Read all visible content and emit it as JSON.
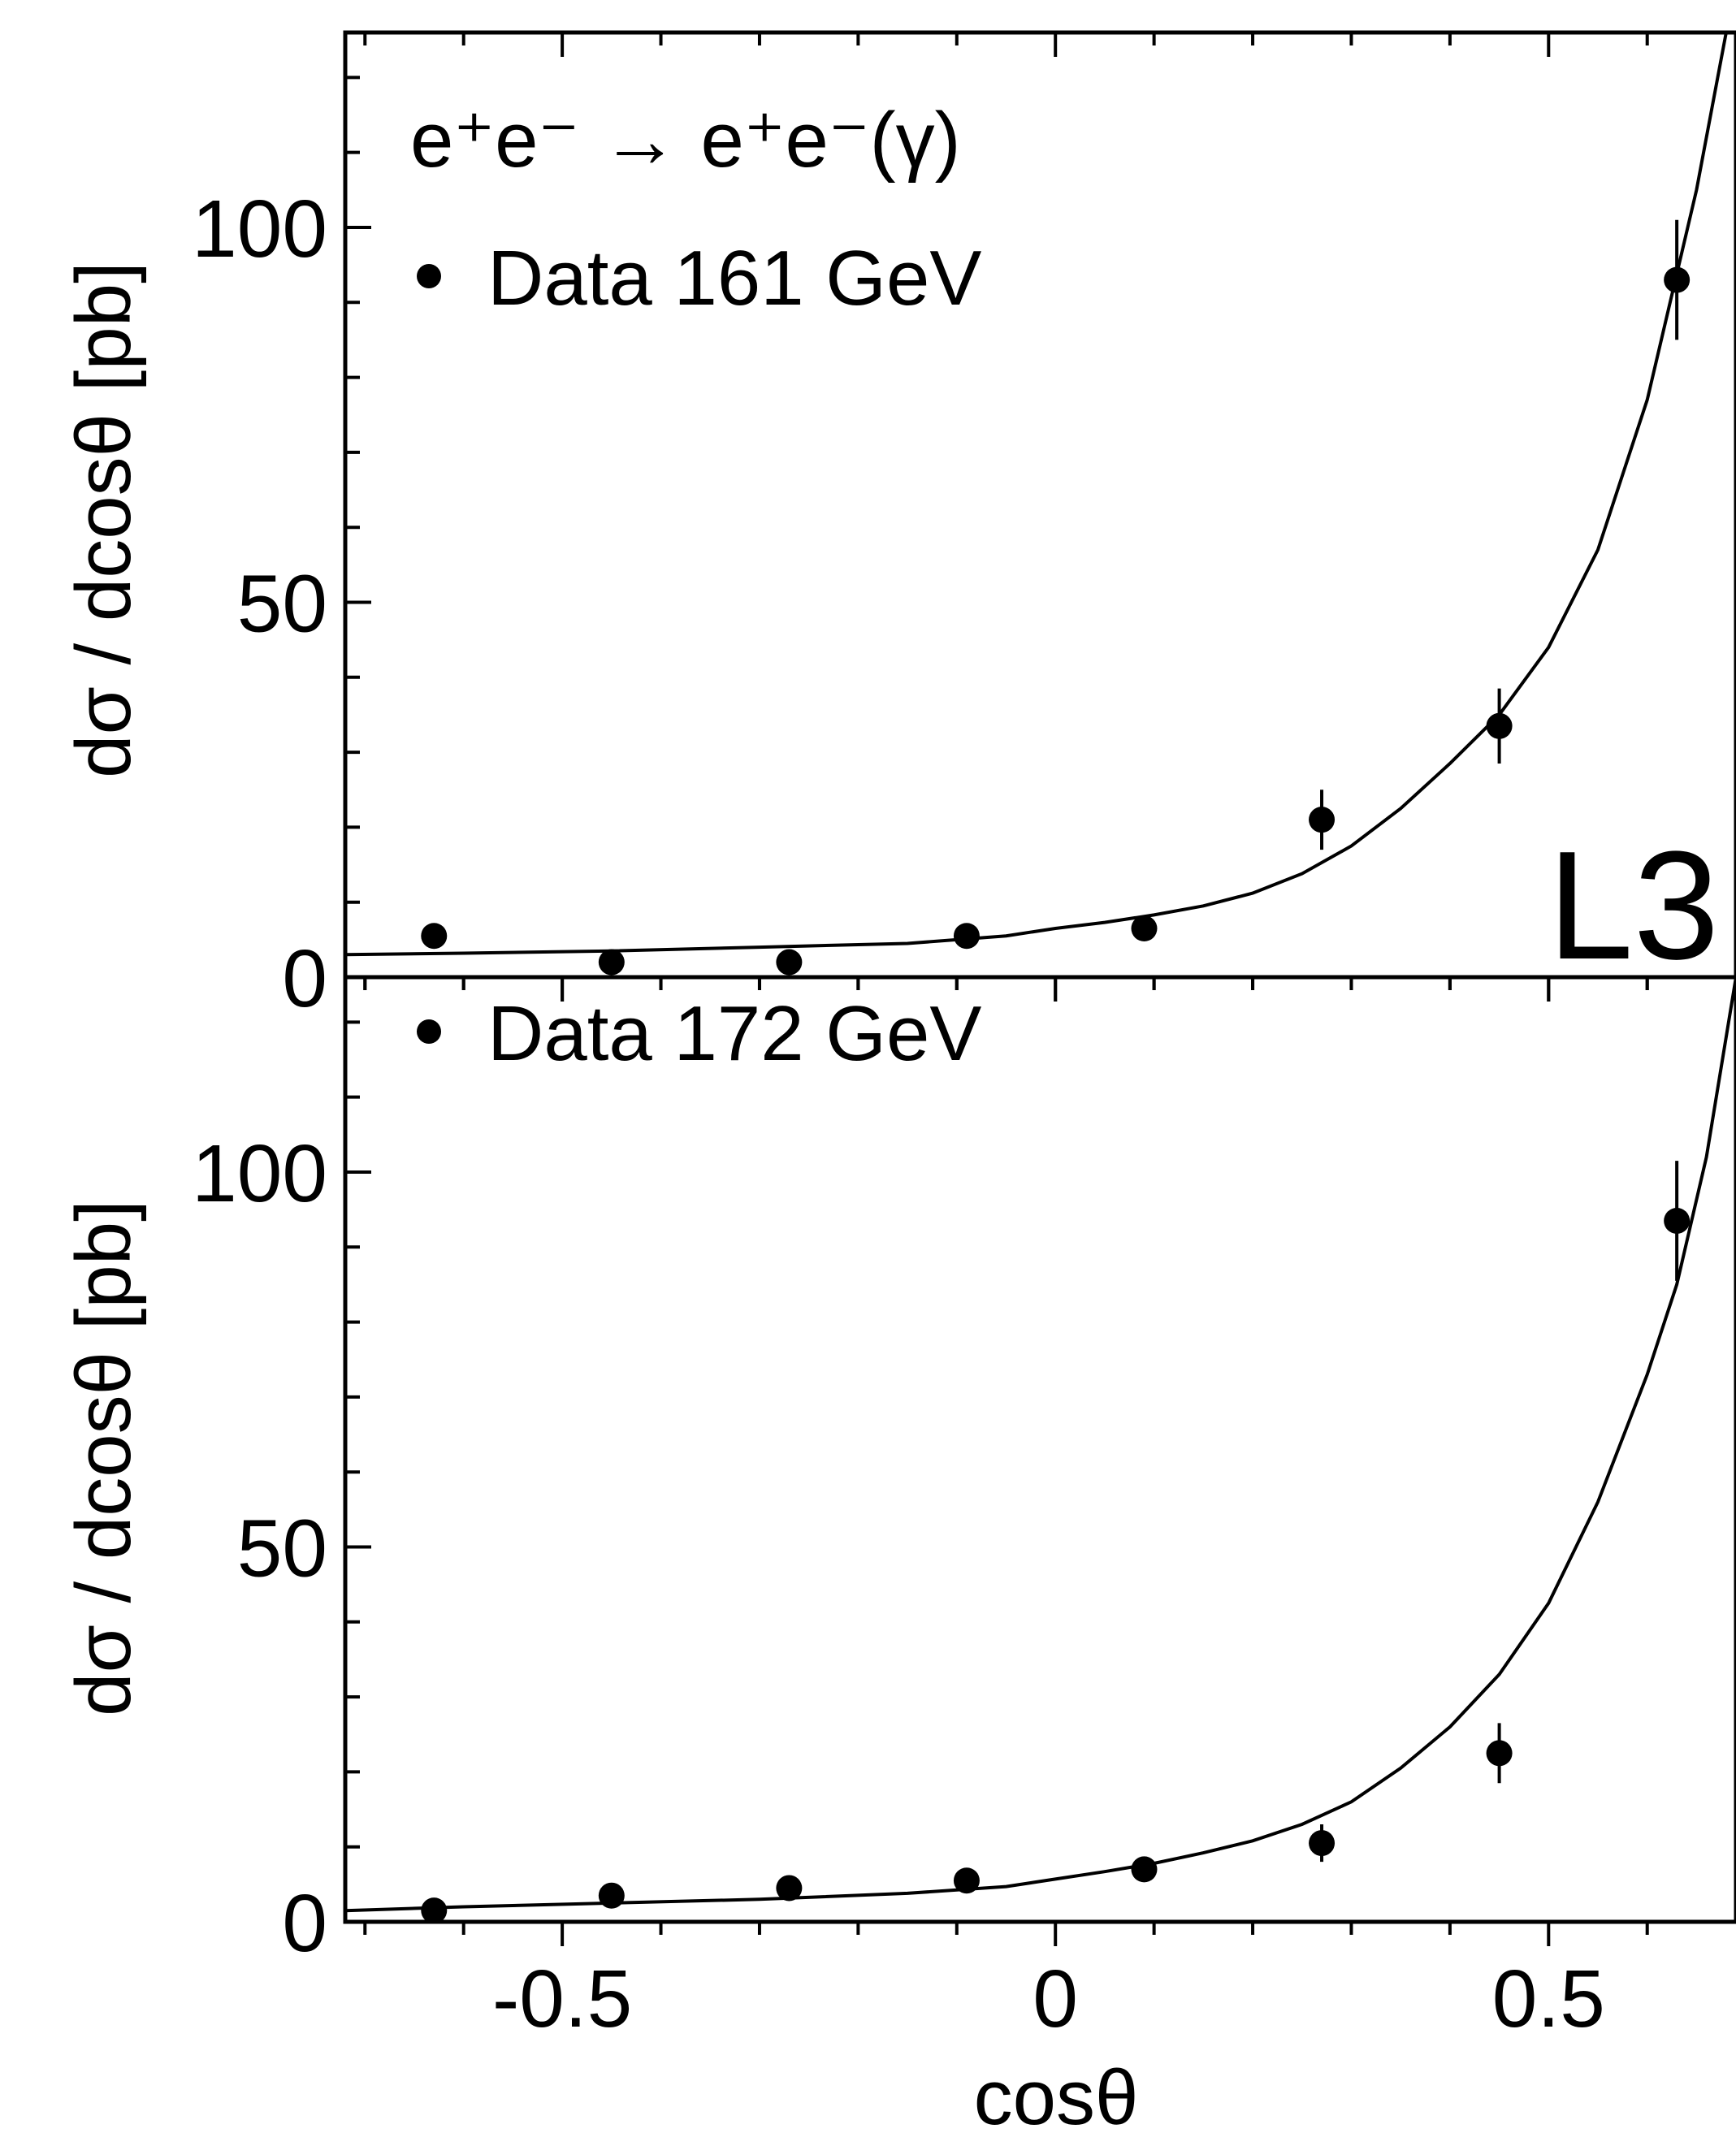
{
  "brand_label": "L3",
  "process_label": "e⁺e⁻ → e⁺e⁻(γ)",
  "x_axis": {
    "label": "cosθ",
    "ticks": [
      -0.5,
      0,
      0.5
    ],
    "tick_labels": [
      "-0.5",
      "0",
      "0.5"
    ]
  },
  "chart_data": [
    {
      "type": "scatter",
      "legend": "Data 161 GeV",
      "ylabel": "dσ / dcosθ [pb]",
      "xlim": [
        -0.72,
        0.69
      ],
      "ylim": [
        0,
        126
      ],
      "y_ticks": [
        0,
        50,
        100
      ],
      "y_tick_labels": [
        "0",
        "50",
        "100"
      ],
      "points": [
        {
          "x": -0.63,
          "y": 5.5,
          "err": 1.5
        },
        {
          "x": -0.45,
          "y": 2.0,
          "err": 1.0
        },
        {
          "x": -0.27,
          "y": 2.0,
          "err": 1.0
        },
        {
          "x": -0.09,
          "y": 5.5,
          "err": 1.2
        },
        {
          "x": 0.09,
          "y": 6.5,
          "err": 1.5
        },
        {
          "x": 0.27,
          "y": 21.0,
          "err": 4.0
        },
        {
          "x": 0.45,
          "y": 33.5,
          "err": 5.0
        },
        {
          "x": 0.63,
          "y": 93.0,
          "err": 8.0
        }
      ],
      "curve": {
        "x": [
          -0.72,
          -0.6,
          -0.45,
          -0.3,
          -0.15,
          -0.05,
          0.0,
          0.05,
          0.1,
          0.15,
          0.2,
          0.25,
          0.3,
          0.35,
          0.4,
          0.45,
          0.5,
          0.55,
          0.6,
          0.65,
          0.68
        ],
        "y": [
          3.0,
          3.2,
          3.5,
          4.0,
          4.5,
          5.5,
          6.5,
          7.3,
          8.3,
          9.5,
          11.2,
          13.8,
          17.5,
          22.5,
          28.5,
          35.0,
          44.0,
          57.0,
          77.0,
          105.0,
          126.0
        ]
      }
    },
    {
      "type": "scatter",
      "legend": "Data 172 GeV",
      "ylabel": "dσ / dcosθ [pb]",
      "xlim": [
        -0.72,
        0.69
      ],
      "ylim": [
        0,
        126
      ],
      "y_ticks": [
        0,
        50,
        100
      ],
      "y_tick_labels": [
        "0",
        "50",
        "100"
      ],
      "points": [
        {
          "x": -0.63,
          "y": 1.5,
          "err": 1.0
        },
        {
          "x": -0.45,
          "y": 3.5,
          "err": 1.0
        },
        {
          "x": -0.27,
          "y": 4.5,
          "err": 1.0
        },
        {
          "x": -0.09,
          "y": 5.5,
          "err": 1.2
        },
        {
          "x": 0.09,
          "y": 7.0,
          "err": 1.5
        },
        {
          "x": 0.27,
          "y": 10.5,
          "err": 2.5
        },
        {
          "x": 0.45,
          "y": 22.5,
          "err": 4.0
        },
        {
          "x": 0.63,
          "y": 93.5,
          "err": 8.0
        }
      ],
      "curve": {
        "x": [
          -0.72,
          -0.6,
          -0.45,
          -0.3,
          -0.15,
          -0.05,
          0.0,
          0.05,
          0.1,
          0.15,
          0.2,
          0.25,
          0.3,
          0.35,
          0.4,
          0.45,
          0.5,
          0.55,
          0.6,
          0.63,
          0.66,
          0.69
        ],
        "y": [
          1.5,
          2.0,
          2.5,
          3.0,
          3.8,
          4.7,
          5.7,
          6.7,
          7.8,
          9.2,
          10.8,
          13.0,
          16.0,
          20.5,
          26.0,
          33.0,
          42.5,
          56.0,
          73.0,
          85.0,
          102.0,
          126.0
        ]
      }
    }
  ]
}
